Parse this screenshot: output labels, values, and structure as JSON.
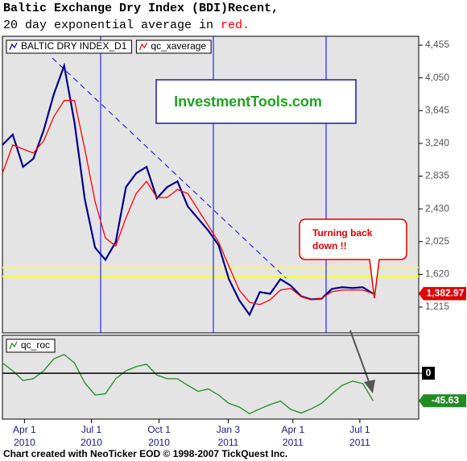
{
  "chart_data": [
    {
      "type": "line",
      "title": "Baltic Exchange Dry Index (BDI)Recent,",
      "subtitle": "20 day exponential average in ",
      "subtitle_highlight": "red.",
      "watermark": "InvestmentTools.com",
      "annotation": [
        "Turning back",
        "down !!"
      ],
      "x": [
        "2010-03-02",
        "2010-03-16",
        "2010-03-30",
        "2010-04-13",
        "2010-04-27",
        "2010-05-11",
        "2010-05-25",
        "2010-06-08",
        "2010-06-22",
        "2010-07-06",
        "2010-07-20",
        "2010-08-03",
        "2010-08-17",
        "2010-08-31",
        "2010-09-14",
        "2010-09-28",
        "2010-10-12",
        "2010-10-26",
        "2010-11-09",
        "2010-11-23",
        "2010-12-07",
        "2010-12-21",
        "2011-01-04",
        "2011-01-18",
        "2011-02-01",
        "2011-02-15",
        "2011-03-01",
        "2011-03-15",
        "2011-03-29",
        "2011-04-12",
        "2011-04-26",
        "2011-05-10",
        "2011-05-24",
        "2011-06-07",
        "2011-06-21",
        "2011-07-05",
        "2011-07-19"
      ],
      "xlim": [
        "2010-03-02",
        "2011-09-19"
      ],
      "series": [
        {
          "name": "BALTIC DRY INDEX_D1",
          "color": "#00008b",
          "values": [
            3220,
            3350,
            2950,
            3050,
            3400,
            3850,
            4200,
            3500,
            2550,
            1950,
            1800,
            2020,
            2700,
            2870,
            2950,
            2560,
            2700,
            2770,
            2460,
            2310,
            2160,
            1980,
            1560,
            1300,
            1120,
            1400,
            1380,
            1560,
            1480,
            1350,
            1310,
            1320,
            1440,
            1460,
            1450,
            1460,
            1380
          ]
        },
        {
          "name": "qc_xaverage",
          "color": "#ff0000",
          "values": [
            2870,
            3220,
            3170,
            3120,
            3270,
            3570,
            3770,
            3770,
            3170,
            2520,
            2070,
            1970,
            2320,
            2620,
            2770,
            2570,
            2570,
            2670,
            2620,
            2420,
            2220,
            2020,
            1720,
            1425,
            1275,
            1245,
            1305,
            1425,
            1445,
            1345,
            1305,
            1325,
            1405,
            1425,
            1425,
            1425,
            1382.97
          ],
          "value_labels": [
            null,
            null,
            null,
            null,
            null,
            null,
            null,
            null,
            null,
            null,
            null,
            null,
            null,
            null,
            null,
            null,
            null,
            null,
            null,
            null,
            null,
            null,
            null,
            null,
            null,
            null,
            null,
            null,
            null,
            null,
            null,
            null,
            null,
            null,
            null,
            null,
            "1,382.97"
          ]
        }
      ],
      "ylim": [
        896,
        4565
      ],
      "yticks": [
        {
          "value": 1215,
          "label": "1,215"
        },
        {
          "value": 1620,
          "label": "1,620"
        },
        {
          "value": 2025,
          "label": "2,025"
        },
        {
          "value": 2430,
          "label": "2,430"
        },
        {
          "value": 2835,
          "label": "2,835"
        },
        {
          "value": 3240,
          "label": "3,240"
        },
        {
          "value": 3645,
          "label": "3,645"
        },
        {
          "value": 4050,
          "label": "4,050"
        },
        {
          "value": 4455,
          "label": "4,455"
        }
      ]
    },
    {
      "type": "line",
      "x": [
        "2010-03-02",
        "2010-03-16",
        "2010-03-30",
        "2010-04-13",
        "2010-04-27",
        "2010-05-11",
        "2010-05-25",
        "2010-06-08",
        "2010-06-22",
        "2010-07-06",
        "2010-07-20",
        "2010-08-03",
        "2010-08-17",
        "2010-08-31",
        "2010-09-14",
        "2010-09-28",
        "2010-10-12",
        "2010-10-26",
        "2010-11-09",
        "2010-11-23",
        "2010-12-07",
        "2010-12-21",
        "2011-01-04",
        "2011-01-18",
        "2011-02-01",
        "2011-02-15",
        "2011-03-01",
        "2011-03-15",
        "2011-03-29",
        "2011-04-12",
        "2011-04-26",
        "2011-05-10",
        "2011-05-24",
        "2011-06-07",
        "2011-06-21",
        "2011-07-05",
        "2011-07-19"
      ],
      "xlim": [
        "2010-03-02",
        "2011-09-19"
      ],
      "series": [
        {
          "name": "qc_roc",
          "color": "#228b22",
          "values": [
            17,
            4,
            -12,
            -9,
            4,
            24,
            31,
            17,
            -16,
            -36,
            -34,
            -9,
            4,
            11,
            15,
            -3,
            -9,
            -9,
            -20,
            -30,
            -26,
            -36,
            -50,
            -56,
            -67,
            -59,
            -52,
            -46,
            -60,
            -66,
            -59,
            -50,
            -34,
            -20,
            -13,
            -17,
            -45.63
          ]
        }
      ],
      "ylim": [
        -76,
        63
      ],
      "yticks": [
        0
      ],
      "xticks": [
        {
          "value": "2010-04-01",
          "label": [
            "Apr 1",
            "2010"
          ]
        },
        {
          "value": "2010-07-01",
          "label": [
            "Jul 1",
            "2010"
          ]
        },
        {
          "value": "2010-10-01",
          "label": [
            "Oct 1",
            "2010"
          ]
        },
        {
          "value": "2011-01-03",
          "label": [
            "Jan 3",
            "2011"
          ]
        },
        {
          "value": "2011-04-01",
          "label": [
            "Apr 1",
            "2011"
          ]
        },
        {
          "value": "2011-07-01",
          "label": [
            "Jul 1",
            "2011"
          ]
        }
      ]
    }
  ],
  "footer": "Chart created with NeoTicker EOD © 1998-2007 TickQuest Inc."
}
